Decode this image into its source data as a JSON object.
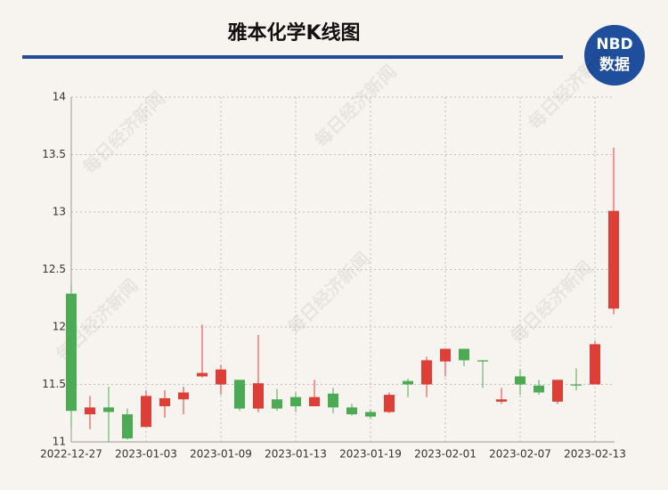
{
  "chart_data": {
    "type": "candlestick",
    "title": "雅本化学K线图",
    "logo_top": "NBD",
    "logo_bottom": "数据",
    "watermark": "每日经济新闻",
    "categories": [
      "2022-12-27",
      null,
      null,
      null,
      "2023-01-03",
      null,
      null,
      null,
      "2023-01-09",
      null,
      null,
      null,
      "2023-01-13",
      null,
      null,
      null,
      "2023-01-19",
      null,
      null,
      null,
      "2023-02-01",
      null,
      null,
      null,
      "2023-02-07",
      null,
      null,
      null,
      "2023-02-13",
      null
    ],
    "open": [
      12.29,
      11.24,
      11.3,
      11.24,
      11.13,
      11.31,
      11.37,
      11.57,
      11.5,
      11.54,
      11.29,
      11.37,
      11.39,
      11.31,
      11.42,
      11.3,
      11.26,
      11.26,
      11.53,
      11.5,
      11.7,
      11.81,
      11.71,
      11.35,
      11.57,
      11.49,
      11.35,
      11.5,
      11.5,
      12.16
    ],
    "high": [
      12.37,
      11.4,
      11.48,
      11.29,
      11.45,
      11.45,
      11.48,
      12.02,
      11.67,
      11.54,
      11.93,
      11.46,
      11.43,
      11.54,
      11.47,
      11.33,
      11.28,
      11.43,
      11.55,
      11.74,
      11.81,
      11.81,
      11.71,
      11.47,
      11.63,
      11.54,
      11.54,
      11.64,
      11.88,
      13.56
    ],
    "low": [
      11.12,
      11.11,
      11.0,
      11.02,
      11.13,
      11.21,
      11.24,
      11.56,
      11.41,
      11.27,
      11.26,
      11.27,
      11.26,
      11.31,
      11.25,
      11.23,
      11.2,
      11.25,
      11.39,
      11.39,
      11.57,
      11.66,
      11.47,
      11.33,
      11.41,
      11.41,
      11.33,
      11.45,
      11.5,
      12.11
    ],
    "close": [
      11.27,
      11.3,
      11.26,
      11.03,
      11.4,
      11.38,
      11.43,
      11.6,
      11.63,
      11.29,
      11.51,
      11.29,
      11.31,
      11.39,
      11.3,
      11.24,
      11.22,
      11.41,
      11.5,
      11.71,
      11.81,
      11.71,
      11.7,
      11.37,
      11.5,
      11.43,
      11.54,
      11.49,
      11.85,
      13.01
    ],
    "up_color": "#dd3f37",
    "down_color": "#4caa55",
    "ylim": [
      11,
      14
    ],
    "yticks": [
      11,
      11.5,
      12,
      12.5,
      13,
      13.5,
      14
    ],
    "grid": true
  }
}
